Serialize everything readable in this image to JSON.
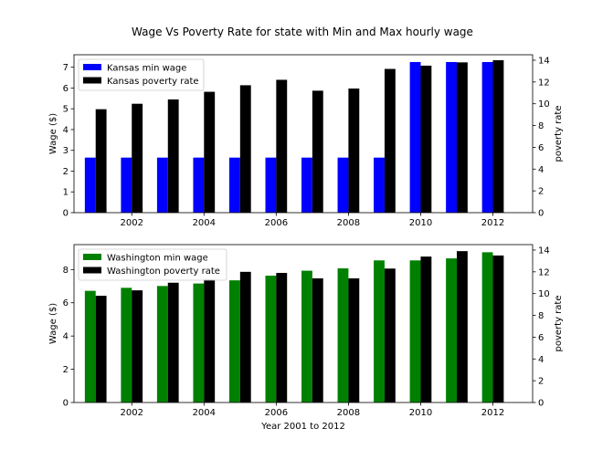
{
  "title": "Wage Vs Poverty Rate for state with Min and Max hourly wage",
  "chart_data": [
    {
      "type": "bar",
      "x": [
        2001,
        2002,
        2003,
        2004,
        2005,
        2006,
        2007,
        2008,
        2009,
        2010,
        2011,
        2012
      ],
      "xticks": [
        2002,
        2004,
        2006,
        2008,
        2010,
        2012
      ],
      "xlim": [
        2000.4,
        2013.1
      ],
      "ylabel": "Wage ($)",
      "ylim": [
        0,
        7.6
      ],
      "yticks": [
        0,
        1,
        2,
        3,
        4,
        5,
        6,
        7
      ],
      "y2label": "poverty rate",
      "y2lim": [
        0,
        14.5
      ],
      "y2ticks": [
        0,
        2,
        4,
        6,
        8,
        10,
        12,
        14
      ],
      "legend_position": "top-left",
      "series": [
        {
          "name": "Kansas min wage",
          "axis": "left",
          "color": "#0000ff",
          "values": [
            2.65,
            2.65,
            2.65,
            2.65,
            2.65,
            2.65,
            2.65,
            2.65,
            2.65,
            7.25,
            7.25,
            7.25
          ]
        },
        {
          "name": "Kansas poverty rate",
          "axis": "right",
          "color": "#000000",
          "values": [
            9.5,
            10.0,
            10.4,
            11.1,
            11.7,
            12.2,
            11.2,
            11.4,
            13.2,
            13.5,
            13.8,
            14.0
          ]
        }
      ]
    },
    {
      "type": "bar",
      "x": [
        2001,
        2002,
        2003,
        2004,
        2005,
        2006,
        2007,
        2008,
        2009,
        2010,
        2011,
        2012
      ],
      "xticks": [
        2002,
        2004,
        2006,
        2008,
        2010,
        2012
      ],
      "xlim": [
        2000.4,
        2013.1
      ],
      "xlabel": "Year 2001 to 2012",
      "ylabel": "Wage ($)",
      "ylim": [
        0,
        9.5
      ],
      "yticks": [
        0,
        2,
        4,
        6,
        8
      ],
      "y2label": "poverty rate",
      "y2lim": [
        0,
        14.5
      ],
      "y2ticks": [
        0,
        2,
        4,
        6,
        8,
        10,
        12,
        14
      ],
      "legend_position": "top-left",
      "series": [
        {
          "name": "Washington min wage",
          "axis": "left",
          "color": "#008000",
          "values": [
            6.72,
            6.9,
            7.01,
            7.16,
            7.35,
            7.63,
            7.93,
            8.07,
            8.55,
            8.55,
            8.67,
            9.04
          ]
        },
        {
          "name": "Washington poverty rate",
          "axis": "right",
          "color": "#000000",
          "values": [
            9.8,
            10.3,
            11.0,
            11.3,
            12.0,
            11.9,
            11.4,
            11.4,
            12.3,
            13.4,
            13.9,
            13.5
          ]
        }
      ]
    }
  ]
}
